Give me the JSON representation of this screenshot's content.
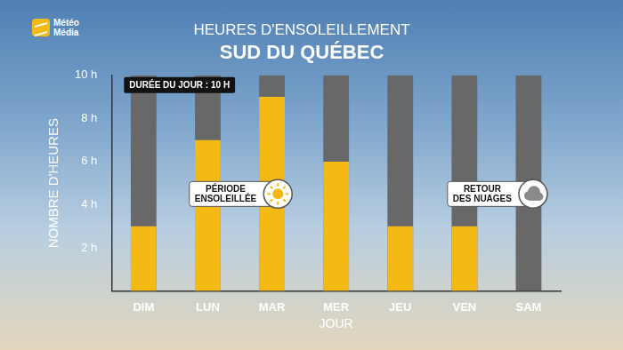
{
  "chart_data": {
    "type": "bar",
    "source": "Météo Média",
    "title": "HEURES D'ENSOLEILLEMENT",
    "subtitle": "SUD DU QUÉBEC",
    "x_label": "JOUR",
    "y_label": "NOMBRE D'HEURES",
    "categories": [
      "DIM",
      "LUN",
      "MAR",
      "MER",
      "JEU",
      "VEN",
      "SAM"
    ],
    "values": [
      3,
      7,
      9,
      6,
      3,
      3,
      0
    ],
    "color": "#f5b914",
    "day_length": {
      "value": 10,
      "label": "DURÉE DU JOUR : 10 H",
      "color": "#686868"
    },
    "annotations": [
      "PÉRIODE ENSOLEILLÉE",
      "RETOUR DES NUAGES"
    ],
    "ylim": [
      0,
      10
    ],
    "yticks": [
      {
        "value": 2,
        "label": "2 h"
      },
      {
        "value": 4,
        "label": "4 h"
      },
      {
        "value": 6,
        "label": "6 h"
      },
      {
        "value": 8,
        "label": "8 h"
      },
      {
        "value": 10,
        "label": "10 h"
      }
    ],
    "grid": false
  }
}
